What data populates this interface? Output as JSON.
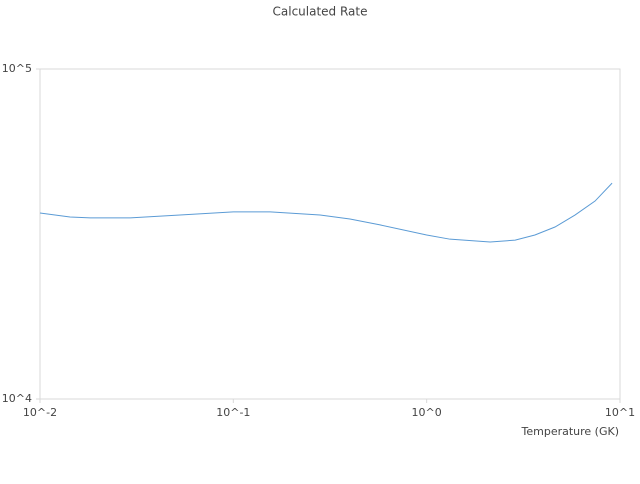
{
  "chart_data": {
    "type": "line",
    "title": "Calculated Rate",
    "x_label": "Temperature (GK)",
    "xscale": "log",
    "yscale": "log",
    "xlim": [
      0.01,
      10
    ],
    "ylim": [
      10000,
      100000
    ],
    "xticks": [
      {
        "value": 0.01,
        "label": "10^-2"
      },
      {
        "value": 0.1,
        "label": "10^-1"
      },
      {
        "value": 1,
        "label": "10^0"
      },
      {
        "value": 10,
        "label": "10^1"
      }
    ],
    "yticks": [
      {
        "value": 10000,
        "label": "10^4"
      },
      {
        "value": 100000,
        "label": "10^5"
      }
    ],
    "grid": false,
    "series": [
      {
        "color": "#5b9bd5",
        "x": [
          0.01,
          0.0143,
          0.0182,
          0.0293,
          0.053,
          0.1,
          0.155,
          0.281,
          0.401,
          0.574,
          1.0,
          1.32,
          2.13,
          2.87,
          3.63,
          4.61,
          5.85,
          7.43,
          9.1
        ],
        "values": [
          36600,
          35600,
          35400,
          35400,
          36100,
          36900,
          36900,
          36100,
          35100,
          33700,
          31400,
          30500,
          29900,
          30300,
          31400,
          33200,
          36100,
          39800,
          45100
        ]
      }
    ]
  }
}
